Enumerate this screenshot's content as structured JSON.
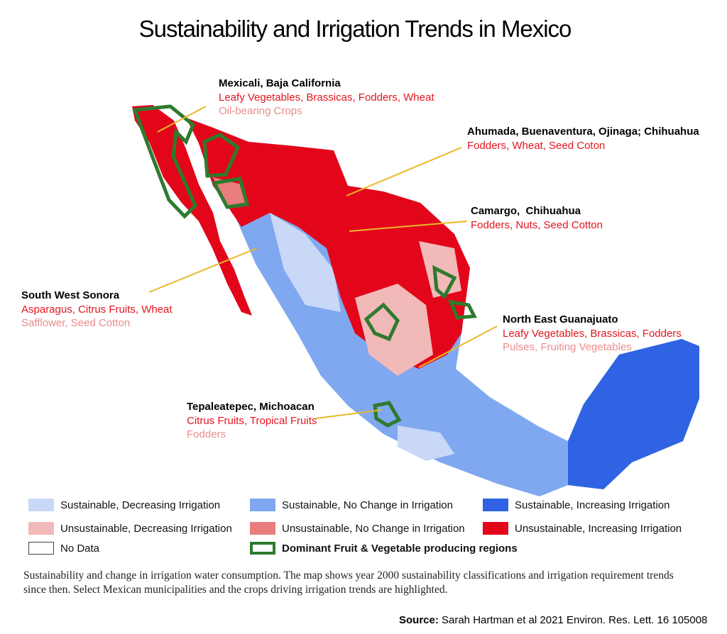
{
  "title": "Sustainability and Irrigation Trends in Mexico",
  "regions": [
    {
      "name": "Mexicali, Baja California",
      "primary_crops": "Leafy Vegetables, Brassicas, Fodders, Wheat",
      "secondary_crops": "Oil-bearing Crops"
    },
    {
      "name": "Ahumada, Buenaventura, Ojinaga; Chihuahua",
      "primary_crops": "Fodders, Wheat, Seed Coton"
    },
    {
      "name": "Camargo,  Chihuahua",
      "primary_crops": "Fodders, Nuts, Seed Cotton"
    },
    {
      "name": "South West Sonora",
      "primary_crops": "Asparagus, Citrus Fruits, Wheat",
      "secondary_crops": "Safflower, Seed Cotton"
    },
    {
      "name": "North East Guanajuato",
      "primary_crops": "Leafy Vegetables, Brassicas, Fodders",
      "secondary_crops": "Pulses, Fruiting Vegetables"
    },
    {
      "name": "Tepaleatepec, Michoacan",
      "primary_crops": "Citrus Fruits, Tropical Fruits",
      "secondary_crops": "Fodders"
    }
  ],
  "legend": {
    "items": [
      {
        "label": "Sustainable, Decreasing Irrigation",
        "color": "#c9d8f7"
      },
      {
        "label": "Sustainable, No Change in Irrigation",
        "color": "#80a8f0"
      },
      {
        "label": "Sustainable, Increasing Irrigation",
        "color": "#2f63e3"
      },
      {
        "label": "Unsustainable, Decreasing Irrigation",
        "color": "#f2b9b9"
      },
      {
        "label": "Unsustainable, No Change in Irrigation",
        "color": "#ea7d7d"
      },
      {
        "label": "Unsustainable, Increasing Irrigation",
        "color": "#e3061a"
      },
      {
        "label": "No Data",
        "color": "#ffffff",
        "outline": true
      },
      {
        "label": "Dominant Fruit & Vegetable producing regions",
        "color": "#2e7a2e",
        "outline": true
      }
    ]
  },
  "caption": "Sustainability and change in irrigation water consumption. The map shows year 2000 sustainability classifications and irrigation requirement trends since then. Select Mexican municipalities and the crops driving irrigation trends are highlighted.",
  "source": {
    "label": "Source:",
    "text": "Sarah Hartman et al 2021 Environ. Res. Lett. 16 105008"
  }
}
